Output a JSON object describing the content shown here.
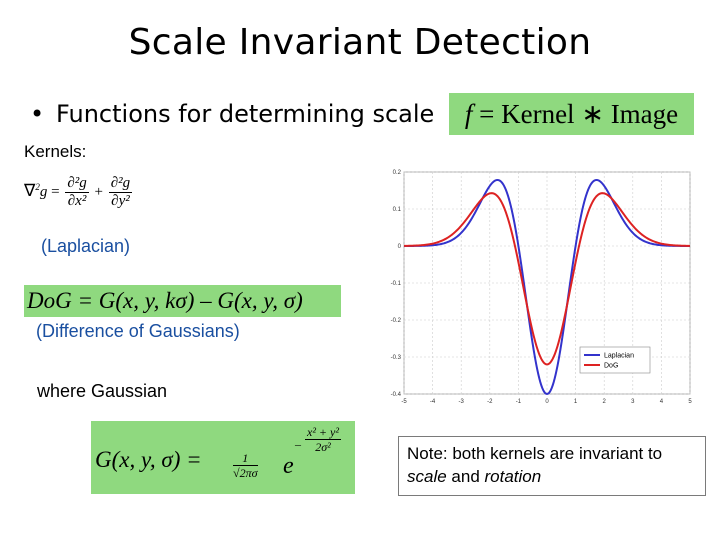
{
  "slide": {
    "title": "Scale Invariant Detection",
    "bullet": "Functions for determining scale",
    "formula": {
      "lhs": "f",
      "eq": "=",
      "kernel": "Kernel",
      "op": "∗",
      "image": "Image"
    },
    "kernels_label": "Kernels:",
    "laplacian_eq": {
      "nabla": "∇",
      "sq": "2",
      "g": "g",
      "eq": "=",
      "num1": "∂²g",
      "den1": "∂x²",
      "plus": "+",
      "num2": "∂²g",
      "den2": "∂y²"
    },
    "laplacian_label": "(Laplacian)",
    "dog_eq": "DoG = G(x, y, kσ) – G(x, y, σ)",
    "dog_label": "(Difference of Gaussians)",
    "gaussian_label": "where Gaussian",
    "gaussian_eq": {
      "lhs": "G(x, y, σ) =",
      "coef_num": "1",
      "coef_den": "√2πσ",
      "e": "e",
      "exp_num": "x² + y²",
      "exp_den": "2σ²",
      "minus": "–"
    },
    "note": {
      "prefix": "Note: both kernels are invariant to ",
      "scale": "scale",
      "and": " and ",
      "rotation": "rotation"
    }
  },
  "colors": {
    "laplacian": "#3333cc",
    "dog": "#dd2222",
    "formula_bg": "#8fd97f",
    "label_blue": "#1a4fa0"
  },
  "chart_data": {
    "type": "line",
    "xlim": [
      -5,
      5
    ],
    "ylim": [
      -0.4,
      0.2
    ],
    "x_ticks": [
      -5,
      -4,
      -3,
      -2,
      -1,
      0,
      1,
      2,
      3,
      4,
      5
    ],
    "y_ticks": [
      0.2,
      0.1,
      0,
      -0.1,
      -0.2,
      -0.3,
      -0.4
    ],
    "y_tick_labels": [
      "0.2",
      "0.1",
      "0",
      "-0.1",
      "-0.2",
      "-0.3",
      "-0.4"
    ],
    "grid": true,
    "legend": "bottom-right",
    "series": [
      {
        "name": "Laplacian",
        "color": "#3333cc",
        "sigma": 1.0,
        "amplitude": 0.4,
        "shape": "mexican-hat"
      },
      {
        "name": "DoG",
        "color": "#dd2222",
        "sigma": 1.12,
        "amplitude": 0.32,
        "shape": "mexican-hat"
      }
    ]
  }
}
